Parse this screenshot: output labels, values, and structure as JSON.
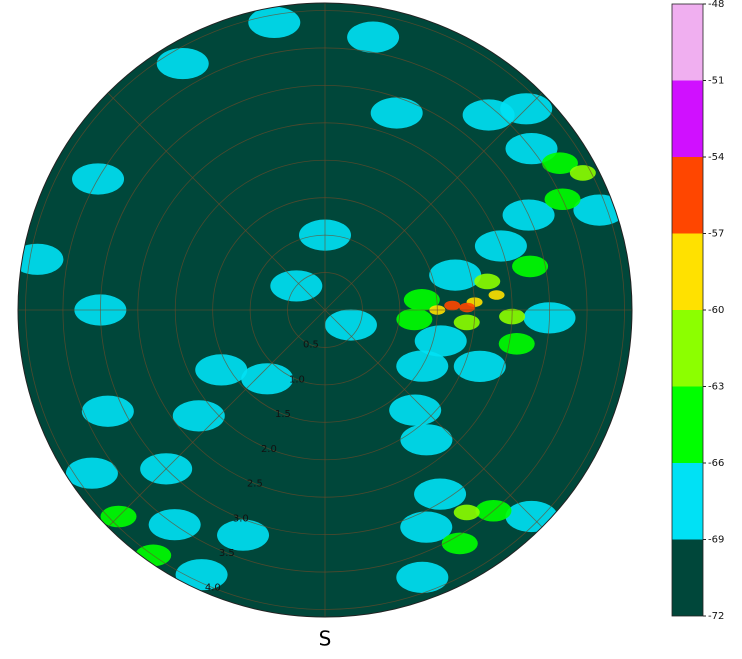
{
  "chart_data": {
    "type": "polar-field",
    "theta_label": "S",
    "rlim": [
      0,
      4.1
    ],
    "rticks": [
      0.5,
      1.0,
      1.5,
      2.0,
      2.5,
      3.0,
      3.5,
      4.0
    ],
    "rticks_labels": [
      "0.5",
      "1.0",
      "1.5",
      "2.0",
      "2.5",
      "3.0",
      "3.5",
      "4.0"
    ],
    "rlabel_azimuth": 202,
    "theta_grid_step": 45,
    "grid": true,
    "colorbar": {
      "ticks": [
        -72,
        -69,
        -66,
        -63,
        -60,
        -57,
        -54,
        -51,
        -48
      ],
      "colors": [
        "#00473a",
        "#00e1f5",
        "#00ff00",
        "#8cff00",
        "#ffe100",
        "#ff4600",
        "#d010ff",
        "#f0aff0"
      ]
    },
    "points": {
      "azimuth": [
        88,
        89,
        87,
        90,
        85,
        92,
        80,
        95,
        84,
        96,
        78,
        100,
        75,
        105,
        70,
        110,
        92,
        120,
        65,
        58,
        62,
        52,
        65,
        45,
        40,
        70,
        145,
        150,
        140,
        155,
        135,
        160,
        148,
        142,
        138,
        215,
        225,
        235,
        230,
        240,
        220,
        205,
        245,
        225,
        215,
        200,
        270,
        280,
        300,
        330,
        350,
        10,
        20,
        0,
        310,
        120
      ],
      "range": [
        1.7,
        1.9,
        2.0,
        1.5,
        2.3,
        2.5,
        2.2,
        1.9,
        1.3,
        1.2,
        2.8,
        2.6,
        1.8,
        1.6,
        2.5,
        2.2,
        3.0,
        1.5,
        3.0,
        3.7,
        3.9,
        3.5,
        3.5,
        3.8,
        3.4,
        3.9,
        3.3,
        3.6,
        3.5,
        3.2,
        3.9,
        3.8,
        2.9,
        2.2,
        1.8,
        3.5,
        3.0,
        3.8,
        2.2,
        1.6,
        1.2,
        3.9,
        3.2,
        3.9,
        4.0,
        3.2,
        3.0,
        3.9,
        3.5,
        3.8,
        3.9,
        3.7,
        2.8,
        1.0,
        0.5,
        0.4
      ],
      "values": [
        -55,
        -55,
        -58,
        -58,
        -58,
        -61,
        -61,
        -61,
        -64,
        -64,
        -64,
        -64,
        -67,
        -67,
        -67,
        -67,
        -67,
        -67,
        -67,
        -64,
        -61,
        -67,
        -64,
        -67,
        -67,
        -67,
        -61,
        -64,
        -64,
        -67,
        -67,
        -67,
        -67,
        -67,
        -67,
        -67,
        -67,
        -67,
        -67,
        -67,
        -67,
        -67,
        -67,
        -64,
        -64,
        -67,
        -67,
        -67,
        -67,
        -67,
        -67,
        -67,
        -67,
        -67,
        -67,
        -67
      ]
    }
  }
}
